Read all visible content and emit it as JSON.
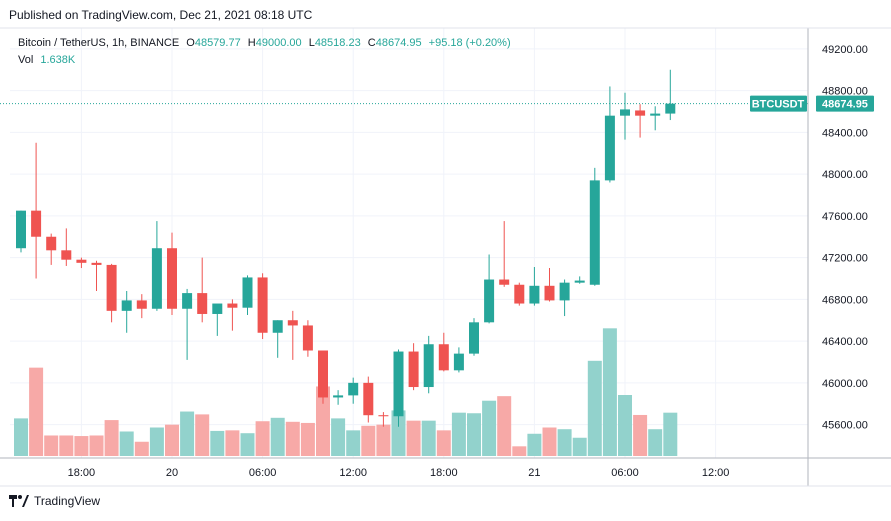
{
  "header": {
    "published": "Published on TradingView.com, Dec 21, 2021 08:18 UTC"
  },
  "legend": {
    "symbol": "Bitcoin / TetherUS, 1h, BINANCE",
    "o_label": "O",
    "o_value": "48579.77",
    "h_label": "H",
    "h_value": "49000.00",
    "l_label": "L",
    "l_value": "48518.23",
    "c_label": "C",
    "c_value": "48674.95",
    "change": "+95.18 (+0.20%)",
    "vol_label": "Vol",
    "vol_value": "1.638K"
  },
  "price_tag": {
    "symbol": "BTCUSDT",
    "price": "48674.95"
  },
  "footer": {
    "brand": "TradingView"
  },
  "colors": {
    "up": "#26a69a",
    "down": "#ef5350",
    "up_vol": "#92d2cc",
    "down_vol": "#f7a9a7",
    "grid": "#f0f3fa",
    "text": "#131722"
  },
  "chart_data": {
    "type": "candlestick",
    "ylim": [
      45280,
      49400
    ],
    "y_ticks": [
      45600,
      46000,
      46400,
      46800,
      47200,
      47600,
      48000,
      48400,
      48800,
      49200
    ],
    "y_tick_labels": [
      "45600.00",
      "46000.00",
      "46400.00",
      "46800.00",
      "47200.00",
      "47600.00",
      "48000.00",
      "48400.00",
      "48800.00",
      "49200.00"
    ],
    "x_tick_labels": [
      {
        "label": "18:00",
        "index": 4
      },
      {
        "label": "20",
        "index": 10
      },
      {
        "label": "06:00",
        "index": 16
      },
      {
        "label": "12:00",
        "index": 22
      },
      {
        "label": "18:00",
        "index": 28
      },
      {
        "label": "21",
        "index": 34
      },
      {
        "label": "06:00",
        "index": 40
      },
      {
        "label": "12:00",
        "index": 46
      }
    ],
    "last_price": 48674.95,
    "candles": [
      {
        "o": 47290,
        "h": 47650,
        "l": 47250,
        "c": 47650,
        "v": 0.66
      },
      {
        "o": 47650,
        "h": 48300,
        "l": 47000,
        "c": 47400,
        "v": 1.55
      },
      {
        "o": 47400,
        "h": 47430,
        "l": 47130,
        "c": 47270,
        "v": 0.36
      },
      {
        "o": 47270,
        "h": 47480,
        "l": 47120,
        "c": 47180,
        "v": 0.36
      },
      {
        "o": 47180,
        "h": 47200,
        "l": 47100,
        "c": 47150,
        "v": 0.35
      },
      {
        "o": 47150,
        "h": 47170,
        "l": 46880,
        "c": 47130,
        "v": 0.36
      },
      {
        "o": 47130,
        "h": 47140,
        "l": 46580,
        "c": 46690,
        "v": 0.63
      },
      {
        "o": 46690,
        "h": 46880,
        "l": 46480,
        "c": 46790,
        "v": 0.43
      },
      {
        "o": 46790,
        "h": 46850,
        "l": 46620,
        "c": 46710,
        "v": 0.25
      },
      {
        "o": 46710,
        "h": 47550,
        "l": 46690,
        "c": 47290,
        "v": 0.5
      },
      {
        "o": 47290,
        "h": 47440,
        "l": 46650,
        "c": 46710,
        "v": 0.55
      },
      {
        "o": 46710,
        "h": 46900,
        "l": 46220,
        "c": 46860,
        "v": 0.78
      },
      {
        "o": 46860,
        "h": 47200,
        "l": 46580,
        "c": 46660,
        "v": 0.73
      },
      {
        "o": 46660,
        "h": 46750,
        "l": 46450,
        "c": 46760,
        "v": 0.44
      },
      {
        "o": 46760,
        "h": 46800,
        "l": 46500,
        "c": 46720,
        "v": 0.45
      },
      {
        "o": 46720,
        "h": 47030,
        "l": 46650,
        "c": 47010,
        "v": 0.4
      },
      {
        "o": 47010,
        "h": 47050,
        "l": 46420,
        "c": 46480,
        "v": 0.61
      },
      {
        "o": 46480,
        "h": 46600,
        "l": 46240,
        "c": 46600,
        "v": 0.67
      },
      {
        "o": 46600,
        "h": 46690,
        "l": 46220,
        "c": 46550,
        "v": 0.6
      },
      {
        "o": 46550,
        "h": 46600,
        "l": 46250,
        "c": 46310,
        "v": 0.58
      },
      {
        "o": 46310,
        "h": 46310,
        "l": 45800,
        "c": 45860,
        "v": 1.22
      },
      {
        "o": 45860,
        "h": 45930,
        "l": 45790,
        "c": 45880,
        "v": 0.66
      },
      {
        "o": 45880,
        "h": 46050,
        "l": 45800,
        "c": 46000,
        "v": 0.45
      },
      {
        "o": 46000,
        "h": 46060,
        "l": 45620,
        "c": 45690,
        "v": 0.53
      },
      {
        "o": 45690,
        "h": 45720,
        "l": 45580,
        "c": 45680,
        "v": 0.55
      },
      {
        "o": 45680,
        "h": 46320,
        "l": 45580,
        "c": 46300,
        "v": 0.8
      },
      {
        "o": 46300,
        "h": 46380,
        "l": 45930,
        "c": 45960,
        "v": 0.62
      },
      {
        "o": 45960,
        "h": 46450,
        "l": 45900,
        "c": 46370,
        "v": 0.62
      },
      {
        "o": 46370,
        "h": 46480,
        "l": 46110,
        "c": 46120,
        "v": 0.45
      },
      {
        "o": 46120,
        "h": 46340,
        "l": 46100,
        "c": 46280,
        "v": 0.76
      },
      {
        "o": 46280,
        "h": 46620,
        "l": 46260,
        "c": 46580,
        "v": 0.75
      },
      {
        "o": 46580,
        "h": 47230,
        "l": 46570,
        "c": 46990,
        "v": 0.97
      },
      {
        "o": 46990,
        "h": 47550,
        "l": 46920,
        "c": 46940,
        "v": 1.05
      },
      {
        "o": 46940,
        "h": 46960,
        "l": 46740,
        "c": 46760,
        "v": 0.17
      },
      {
        "o": 46760,
        "h": 47110,
        "l": 46740,
        "c": 46930,
        "v": 0.39
      },
      {
        "o": 46930,
        "h": 47100,
        "l": 46780,
        "c": 46790,
        "v": 0.5
      },
      {
        "o": 46790,
        "h": 46990,
        "l": 46640,
        "c": 46960,
        "v": 0.47
      },
      {
        "o": 46960,
        "h": 47020,
        "l": 46950,
        "c": 46980,
        "v": 0.32
      },
      {
        "o": 46940,
        "h": 48060,
        "l": 46930,
        "c": 47940,
        "v": 1.67
      },
      {
        "o": 47940,
        "h": 48840,
        "l": 47920,
        "c": 48560,
        "v": 2.24
      },
      {
        "o": 48560,
        "h": 48780,
        "l": 48330,
        "c": 48620,
        "v": 1.07
      },
      {
        "o": 48610,
        "h": 48670,
        "l": 48350,
        "c": 48560,
        "v": 0.72
      },
      {
        "o": 48560,
        "h": 48650,
        "l": 48420,
        "c": 48580,
        "v": 0.47
      },
      {
        "o": 48580,
        "h": 49000,
        "l": 48518,
        "c": 48675,
        "v": 0.76
      }
    ]
  }
}
